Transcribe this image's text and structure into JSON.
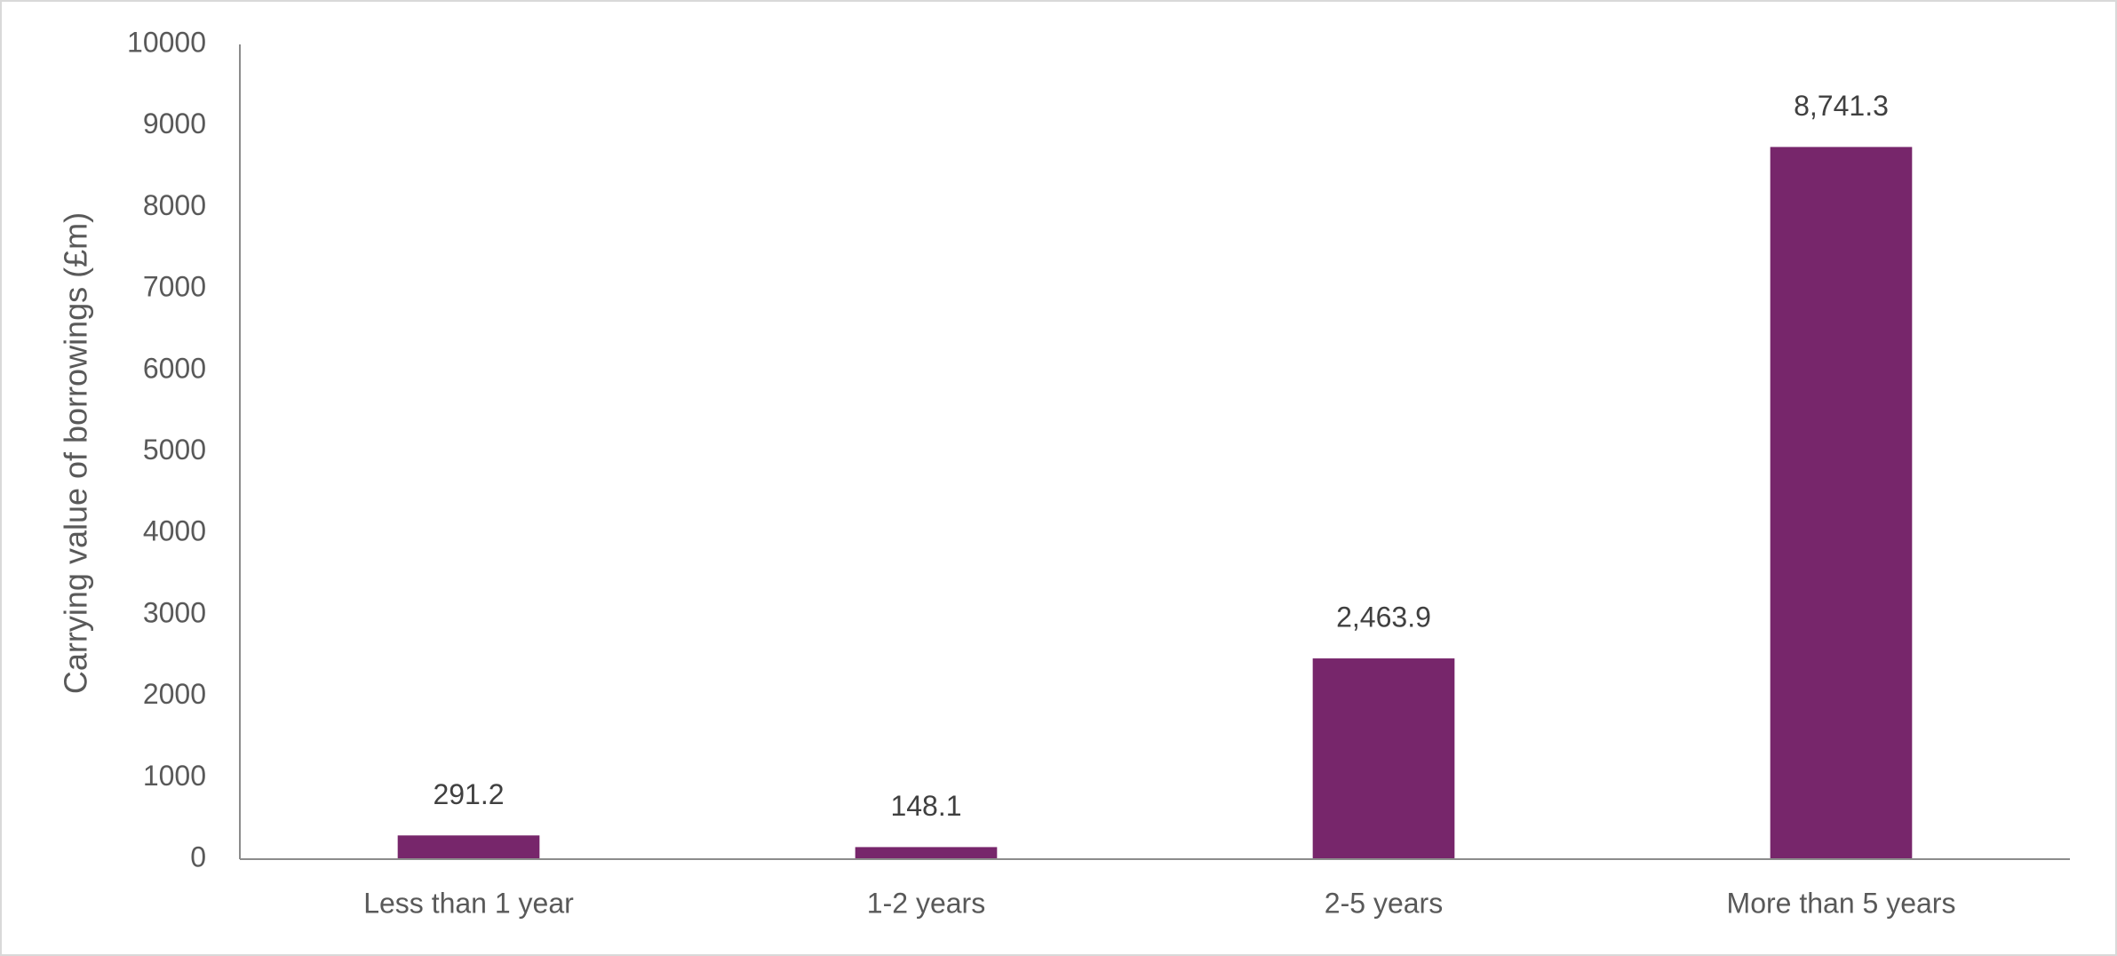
{
  "chart_data": {
    "type": "bar",
    "y_label": "Carrying value of borrowings (£m)",
    "categories": [
      "Less than 1 year",
      "1-2 years",
      "2-5 years",
      "More than 5 years"
    ],
    "values": [
      291.2,
      148.1,
      2463.9,
      8741.3
    ],
    "value_labels": [
      "291.2",
      "148.1",
      "2,463.9",
      "8,741.3"
    ],
    "color": "#77266b",
    "ylim": [
      0,
      10000
    ],
    "yticks": [
      0,
      1000,
      2000,
      3000,
      4000,
      5000,
      6000,
      7000,
      8000,
      9000,
      10000
    ],
    "grid": false
  }
}
